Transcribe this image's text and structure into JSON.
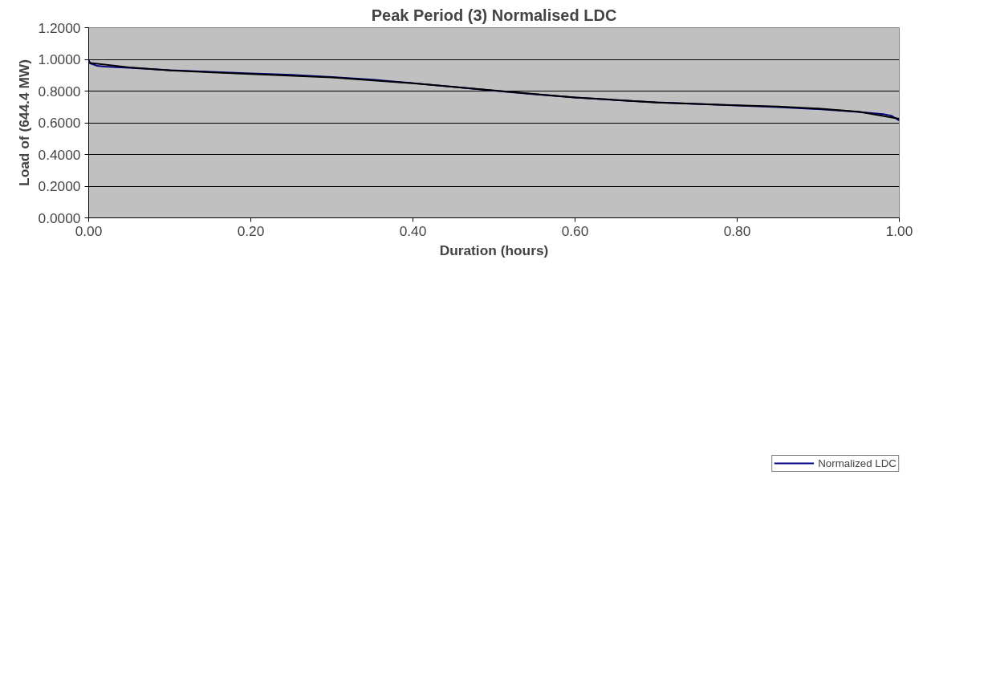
{
  "chart_data": {
    "type": "line",
    "title": "Peak Period (3) Normalised LDC",
    "xlabel": "Duration (hours)",
    "ylabel": "Load of (644.4 MW)",
    "xlim": [
      0,
      1
    ],
    "ylim": [
      0,
      1.2
    ],
    "xticks": [
      {
        "value": 0,
        "label": "0.00"
      },
      {
        "value": 0.2,
        "label": "0.20"
      },
      {
        "value": 0.4,
        "label": "0.40"
      },
      {
        "value": 0.6,
        "label": "0.60"
      },
      {
        "value": 0.8,
        "label": "0.80"
      },
      {
        "value": 1,
        "label": "1.00"
      }
    ],
    "yticks": [
      {
        "value": 0,
        "label": "0.0000"
      },
      {
        "value": 0.2,
        "label": "0.2000"
      },
      {
        "value": 0.4,
        "label": "0.4000"
      },
      {
        "value": 0.6,
        "label": "0.6000"
      },
      {
        "value": 0.8,
        "label": "0.8000"
      },
      {
        "value": 1,
        "label": "1.0000"
      },
      {
        "value": 1.2,
        "label": "1.2000"
      }
    ],
    "grid": "y",
    "legend": "bottom right",
    "marker": "none",
    "line_style": "solid",
    "series": [
      {
        "name": "Normalized LDC",
        "color": "#000080",
        "x": [
          0,
          0.002,
          0.01,
          0.02,
          0.05,
          0.1,
          0.15,
          0.2,
          0.25,
          0.3,
          0.35,
          0.4,
          0.45,
          0.5,
          0.55,
          0.6,
          0.65,
          0.7,
          0.75,
          0.8,
          0.85,
          0.9,
          0.95,
          0.98,
          0.99,
          1.0
        ],
        "values": [
          0.995,
          0.975,
          0.96,
          0.955,
          0.947,
          0.932,
          0.922,
          0.912,
          0.902,
          0.888,
          0.872,
          0.85,
          0.826,
          0.803,
          0.78,
          0.76,
          0.743,
          0.729,
          0.719,
          0.709,
          0.699,
          0.686,
          0.668,
          0.655,
          0.645,
          0.615
        ]
      },
      {
        "color": "#000000",
        "x": [
          0,
          0.05,
          0.1,
          0.2,
          0.3,
          0.4,
          0.5,
          0.6,
          0.7,
          0.8,
          0.85,
          0.9,
          0.95,
          1.0
        ],
        "values": [
          0.978,
          0.95,
          0.93,
          0.908,
          0.886,
          0.849,
          0.804,
          0.76,
          0.728,
          0.71,
          0.702,
          0.69,
          0.67,
          0.625
        ]
      }
    ]
  }
}
